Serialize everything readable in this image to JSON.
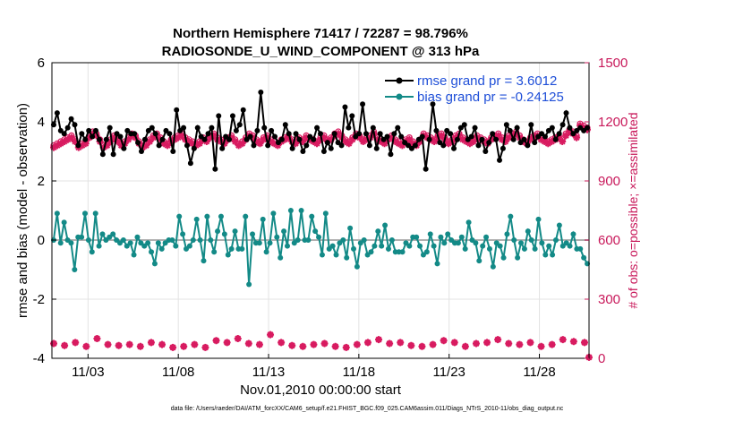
{
  "chart_data": {
    "type": "line",
    "title": "Northern Hemisphere 71417 / 72287 = 98.796%",
    "subtitle": "RADIOSONDE_U_WIND_COMPONENT @ 313 hPa",
    "xlabel": "Nov.01,2010 00:00:00 start",
    "ylabel": "rmse and bias (model - observation)",
    "ylabel_right": "# of obs: o=possible; ×=assimilated",
    "xlim": [
      0.5,
      30.25
    ],
    "ylim": [
      -4,
      6
    ],
    "ylim_right": [
      0,
      1500
    ],
    "x_ticks": [
      2.5,
      7.5,
      12.5,
      17.5,
      22.5,
      27.5
    ],
    "x_tick_labels": [
      "11/03",
      "11/08",
      "11/13",
      "11/18",
      "11/23",
      "11/28"
    ],
    "y_ticks": [
      "-4",
      "-2",
      "0",
      "2",
      "4",
      "6"
    ],
    "y_ticks_right": [
      "0",
      "300",
      "600",
      "900",
      "1200",
      "1500"
    ],
    "footnote": "data file: /Users/raeder/DAI/ATM_forcXX/CAM6_setup/f.e21.FHIST_BGC.f09_025.CAM6assim.011/Diags_NTrS_2010-11/obs_diag_output.nc",
    "colors": {
      "rmse": "#000000",
      "bias": "#138a87",
      "obs": "#d81b60",
      "zero_line": "#b0b0b0"
    },
    "series": [
      {
        "name": "rmse grand pr = 3.6012",
        "values": [
          3.9,
          4.3,
          3.7,
          3.6,
          3.8,
          4.1,
          3.9,
          3.2,
          3.6,
          3.4,
          3.7,
          3.5,
          3.7,
          3.4,
          2.9,
          3.4,
          3.8,
          2.9,
          3.6,
          3.5,
          3.1,
          3.7,
          3.6,
          3.6,
          3.3,
          3.0,
          3.4,
          3.7,
          3.8,
          3.6,
          3.2,
          3.4,
          3.7,
          3.6,
          3.0,
          4.4,
          3.7,
          3.8,
          3.2,
          2.6,
          3.1,
          3.8,
          3.5,
          3.4,
          3.6,
          3.8,
          2.4,
          4.2,
          3.1,
          3.5,
          3.4,
          4.2,
          3.7,
          3.9,
          4.4,
          3.4,
          3.5,
          3.2,
          3.7,
          5.0,
          3.8,
          3.2,
          3.7,
          3.5,
          3.3,
          3.4,
          3.9,
          3.6,
          3.1,
          3.6,
          3.4,
          3.0,
          3.2,
          3.5,
          3.4,
          3.8,
          3.6,
          3.0,
          3.3,
          3.1,
          3.6,
          3.3,
          3.2,
          4.5,
          3.8,
          4.2,
          3.5,
          3.6,
          4.6,
          3.6,
          3.2,
          3.8,
          3.1,
          3.6,
          3.4,
          3.5,
          2.9,
          3.6,
          3.8,
          3.5,
          3.3,
          3.2,
          3.1,
          3.2,
          3.4,
          3.5,
          2.4,
          3.4,
          4.6,
          3.7,
          3.3,
          3.2,
          3.7,
          3.6,
          3.1,
          3.4,
          3.8,
          3.9,
          3.4,
          3.5,
          3.8,
          3.2,
          3.4,
          3.0,
          3.3,
          3.6,
          3.4,
          2.7,
          3.1,
          3.9,
          3.7,
          3.4,
          3.8,
          3.3,
          3.4,
          3.2,
          3.9,
          3.3,
          3.5,
          3.6,
          3.5,
          3.7,
          3.8,
          3.4,
          3.6,
          3.9,
          4.3,
          3.8,
          3.6,
          3.7,
          3.8,
          3.7,
          3.8
        ]
      },
      {
        "name": "bias grand pr = -0.24125",
        "values": [
          0.0,
          0.9,
          -0.1,
          0.6,
          0.0,
          -0.1,
          -1.0,
          0.1,
          0.1,
          0.9,
          0.0,
          -0.4,
          0.9,
          -0.2,
          0.2,
          0.0,
          0.1,
          0.2,
          0.0,
          -0.1,
          0.0,
          -0.2,
          -0.1,
          -0.5,
          0.1,
          -0.1,
          -0.2,
          -0.1,
          -0.4,
          -0.8,
          -0.1,
          -0.3,
          -0.1,
          0.0,
          0.0,
          -0.2,
          0.8,
          0.2,
          -0.3,
          -0.2,
          0.0,
          0.7,
          0.0,
          -0.7,
          0.8,
          0.0,
          -0.4,
          0.3,
          0.8,
          0.2,
          -0.5,
          -0.3,
          0.3,
          -0.3,
          -0.3,
          0.8,
          -1.5,
          0.2,
          -0.1,
          -0.1,
          0.7,
          -0.4,
          -0.1,
          0.9,
          0.1,
          -0.6,
          0.3,
          -0.2,
          1.0,
          -0.1,
          0.0,
          1.0,
          0.0,
          0.0,
          0.8,
          0.3,
          0.1,
          -0.5,
          0.9,
          -0.3,
          -0.2,
          -0.5,
          -0.1,
          0.0,
          -0.6,
          0.4,
          -0.3,
          -0.9,
          -0.1,
          0.0,
          -0.5,
          -0.4,
          -0.2,
          0.3,
          -0.2,
          0.5,
          -0.3,
          0.0,
          -0.4,
          -0.4,
          -0.4,
          -0.1,
          -0.2,
          0.1,
          0.1,
          -0.2,
          -0.5,
          -0.4,
          0.2,
          -0.2,
          -0.8,
          0.1,
          -0.1,
          0.2,
          0.0,
          -0.1,
          -0.1,
          0.1,
          -0.3,
          0.6,
          0.0,
          -0.1,
          -0.7,
          -0.2,
          0.1,
          -0.3,
          -0.9,
          -0.1,
          -0.2,
          -0.6,
          0.2,
          0.8,
          0.0,
          -0.6,
          -0.1,
          -0.3,
          0.3,
          0.0,
          -0.3,
          0.7,
          -0.1,
          -0.5,
          -0.2,
          -0.5,
          0.0,
          0.5,
          -0.2,
          -0.1,
          -0.2,
          0.2,
          -0.3,
          -0.3,
          -0.6,
          -0.8
        ]
      },
      {
        "name": "obs possible (right axis, count)",
        "values": [
          1080,
          1090,
          1100,
          1110,
          1120,
          1130,
          1110,
          1080,
          1090,
          1100,
          1130,
          1150,
          1140,
          1110,
          1080,
          1090,
          1110,
          1130,
          1110,
          1090,
          1100,
          1120,
          1140,
          1130,
          1100,
          1080,
          1090,
          1110,
          1130,
          1140,
          1120,
          1100,
          1090,
          1110,
          1120,
          1130,
          1140,
          1120,
          1110,
          1100,
          1090,
          1100,
          1120,
          1110,
          1130,
          1140,
          1120,
          1110,
          1100,
          1120,
          1130,
          1110,
          1090,
          1100,
          1120,
          1140,
          1130,
          1110,
          1100,
          1120,
          1130,
          1110,
          1100,
          1090,
          1110,
          1120,
          1130,
          1110,
          1100,
          1120,
          1110,
          1130,
          1120,
          1110,
          1100,
          1120,
          1130,
          1110,
          1120,
          1140,
          1150,
          1130,
          1110,
          1100,
          1120,
          1140,
          1130,
          1110,
          1120,
          1130,
          1150,
          1120,
          1110,
          1100,
          1120,
          1130,
          1110,
          1100,
          1090,
          1110,
          1120,
          1100,
          1090,
          1110,
          1140,
          1130,
          1120,
          1110,
          1130,
          1140,
          1120,
          1100,
          1110,
          1130,
          1140,
          1120,
          1110,
          1100,
          1110,
          1130,
          1120,
          1110,
          1100,
          1120,
          1130,
          1140,
          1120,
          1110,
          1130,
          1140,
          1150,
          1130,
          1110,
          1100,
          1120,
          1130,
          1140,
          1120,
          1110,
          1100,
          1110,
          1120,
          1130,
          1110,
          1140,
          1160,
          1150,
          1130,
          1190,
          1180,
          1170
        ],
        "assimilated": [
          1070,
          1080,
          1090,
          1100,
          1110,
          1120,
          1100,
          1070,
          1080,
          1090,
          1120,
          1140,
          1130,
          1100,
          1070,
          1080,
          1100,
          1120,
          1100,
          1080,
          1090,
          1110,
          1130,
          1120,
          1090,
          1070,
          1080,
          1100,
          1120,
          1130,
          1110,
          1090,
          1080,
          1100,
          1110,
          1120,
          1130,
          1110,
          1100,
          1090,
          1080,
          1090,
          1110,
          1100,
          1120,
          1130,
          1110,
          1100,
          1090,
          1110,
          1120,
          1100,
          1080,
          1090,
          1110,
          1130,
          1120,
          1100,
          1090,
          1110,
          1120,
          1100,
          1090,
          1080,
          1100,
          1110,
          1120,
          1100,
          1090,
          1110,
          1100,
          1120,
          1110,
          1100,
          1090,
          1110,
          1120,
          1100,
          1110,
          1130,
          1140,
          1120,
          1100,
          1090,
          1110,
          1130,
          1120,
          1100,
          1110,
          1120,
          1140,
          1110,
          1100,
          1090,
          1110,
          1120,
          1100,
          1090,
          1080,
          1100,
          1110,
          1090,
          1080,
          1100,
          1130,
          1120,
          1110,
          1100,
          1120,
          1130,
          1110,
          1090,
          1100,
          1120,
          1130,
          1110,
          1100,
          1090,
          1100,
          1120,
          1110,
          1100,
          1090,
          1110,
          1120,
          1130,
          1110,
          1100,
          1120,
          1130,
          1140,
          1120,
          1100,
          1090,
          1110,
          1120,
          1130,
          1110,
          1100,
          1090,
          1100,
          1110,
          1120,
          1100,
          1130,
          1150,
          1140,
          1120,
          1180,
          1170,
          1160
        ]
      },
      {
        "name": "obs count (bottom, right axis)",
        "x": [
          0.6,
          1.2,
          1.8,
          2.4,
          3.0,
          3.6,
          4.2,
          4.8,
          5.4,
          6.0,
          6.6,
          7.2,
          7.8,
          8.4,
          9.0,
          9.6,
          10.2,
          10.8,
          11.4,
          12.0,
          12.6,
          13.2,
          13.8,
          14.4,
          15.0,
          15.6,
          16.2,
          16.8,
          17.4,
          18.0,
          18.6,
          19.2,
          19.8,
          20.4,
          21.0,
          21.6,
          22.2,
          22.8,
          23.4,
          24.0,
          24.6,
          25.2,
          25.8,
          26.4,
          27.0,
          27.6,
          28.2,
          28.8,
          29.4,
          30.0,
          30.25
        ],
        "values": [
          75,
          65,
          80,
          60,
          100,
          70,
          65,
          70,
          60,
          80,
          70,
          55,
          60,
          70,
          55,
          90,
          80,
          100,
          75,
          70,
          120,
          80,
          65,
          60,
          70,
          75,
          60,
          55,
          70,
          80,
          95,
          75,
          80,
          65,
          60,
          70,
          90,
          80,
          60,
          75,
          80,
          95,
          75,
          70,
          80,
          60,
          70,
          95,
          85,
          80,
          5
        ]
      }
    ]
  }
}
